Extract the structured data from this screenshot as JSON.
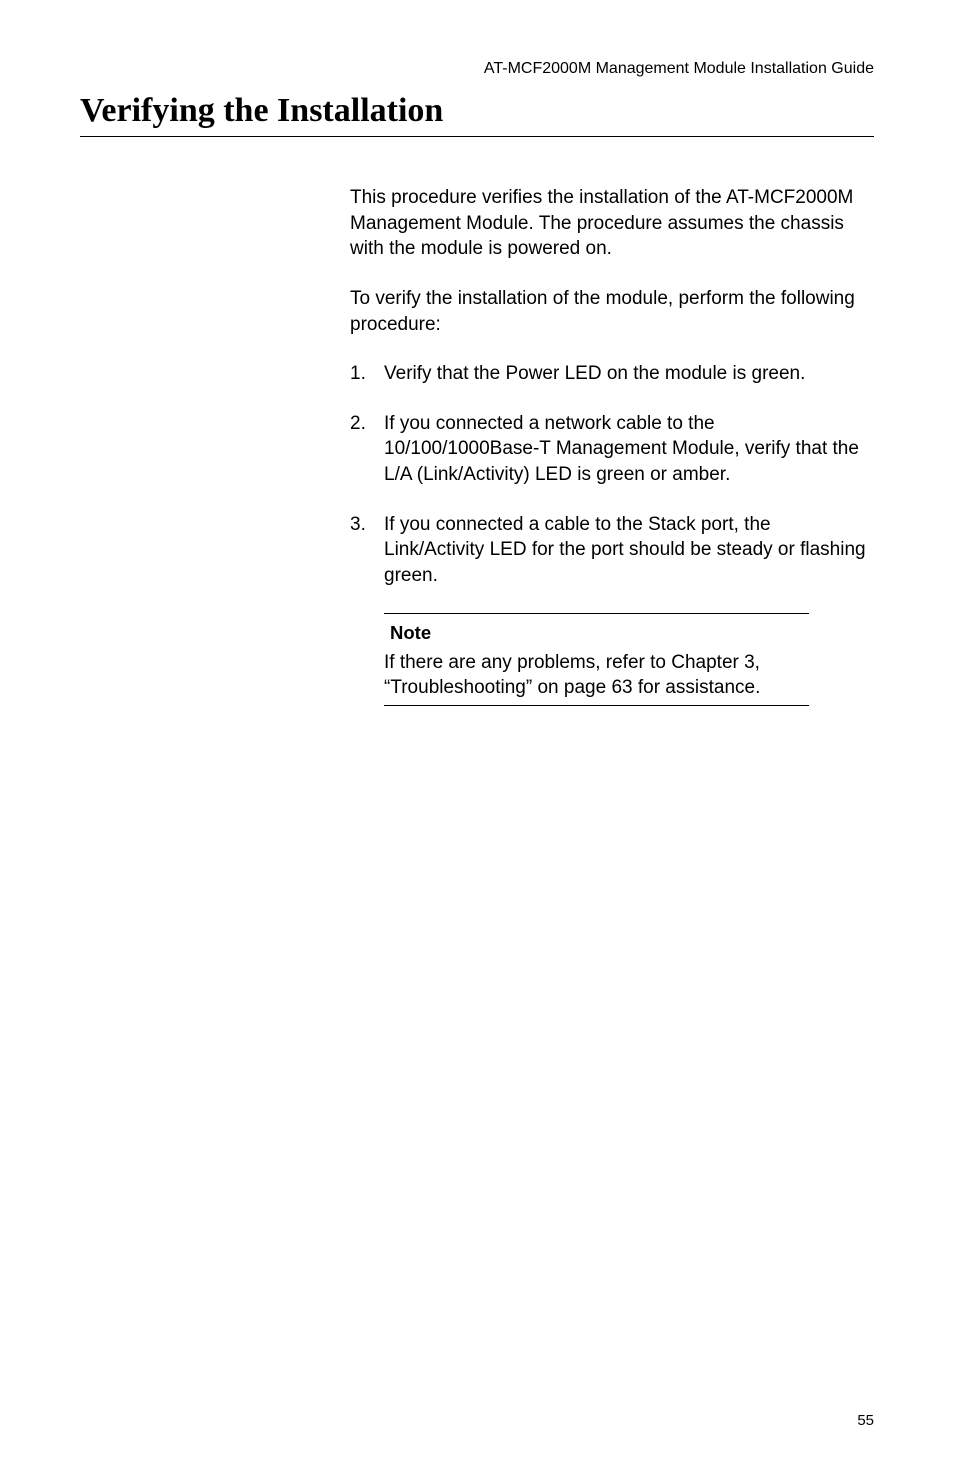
{
  "header": {
    "guideTitle": "AT-MCF2000M Management Module Installation Guide"
  },
  "heading": {
    "title": "Verifying the Installation"
  },
  "content": {
    "intro1": "This procedure verifies the installation of the AT-MCF2000M Management Module. The procedure assumes the chassis with the module is powered on.",
    "intro2": "To verify the installation of the module, perform the following procedure:",
    "steps": [
      {
        "num": "1.",
        "text": "Verify that the Power LED on the module is green."
      },
      {
        "num": "2.",
        "text": "If you connected a network cable to the 10/100/1000Base-T Management Module, verify that the L/A (Link/Activity) LED is green or amber."
      },
      {
        "num": "3.",
        "text": "If you connected a cable to the Stack port, the Link/Activity LED for the port should be steady or flashing green."
      }
    ]
  },
  "note": {
    "label": "Note",
    "text": "If there are any problems, refer to Chapter 3, “Troubleshooting” on page 63 for assistance."
  },
  "footer": {
    "pageNumber": "55"
  }
}
